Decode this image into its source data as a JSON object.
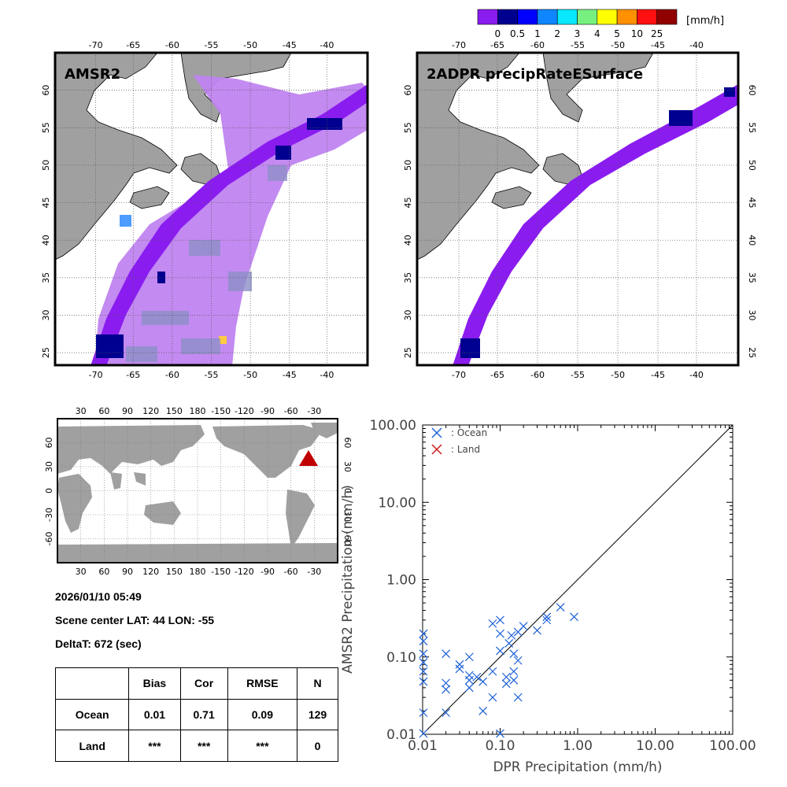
{
  "colorbar": {
    "unit": "[mm/h]",
    "labels": [
      "0",
      "0.5",
      "1",
      "2",
      "3",
      "4",
      "5",
      "10",
      "25"
    ],
    "colors": [
      "#8a1cf0",
      "#000090",
      "#0000ff",
      "#0f86ff",
      "#08e8ff",
      "#78f080",
      "#ffff00",
      "#ff9000",
      "#ff1010",
      "#900000"
    ]
  },
  "maps": [
    {
      "title": "AMSR2",
      "lon_ticks": [
        "-70",
        "-65",
        "-60",
        "-55",
        "-50",
        "-45",
        "-40"
      ],
      "lat_ticks": [
        "60",
        "55",
        "50",
        "45",
        "40",
        "35",
        "30",
        "25"
      ]
    },
    {
      "title": "2ADPR precipRateESurface",
      "lon_ticks": [
        "-70",
        "-65",
        "-60",
        "-55",
        "-50",
        "-45",
        "-40"
      ],
      "lat_ticks": [
        "60",
        "55",
        "50",
        "45",
        "40",
        "35",
        "30",
        "25"
      ]
    }
  ],
  "world_map": {
    "lon_ticks": [
      "30",
      "60",
      "90",
      "120",
      "150",
      "180",
      "-150",
      "-120",
      "-90",
      "-60",
      "-30"
    ],
    "lat_ticks": [
      "60",
      "30",
      "0",
      "-30",
      "-60"
    ],
    "marker_color": "#c00000"
  },
  "info": {
    "datetime": "2026/01/10 05:49",
    "scene_center": "Scene center LAT: 44   LON: -55",
    "delta_t": "DeltaT:  672 (sec)"
  },
  "stats_table": {
    "headers": [
      "",
      "Bias",
      "Cor",
      "RMSE",
      "N"
    ],
    "rows": [
      [
        "Ocean",
        "0.01",
        "0.71",
        "0.09",
        "129"
      ],
      [
        "Land",
        "***",
        "***",
        "***",
        "0"
      ]
    ]
  },
  "chart_data": {
    "type": "scatter",
    "scale": "log",
    "xlabel": "DPR Precipitation (mm/h)",
    "ylabel": "AMSR2 Precipitation (mm/h)",
    "xlim": [
      0.01,
      100
    ],
    "ylim": [
      0.01,
      100
    ],
    "x_tick_labels": [
      "0.01",
      "0.10",
      "1.00",
      "10.00",
      "100.00"
    ],
    "y_tick_labels": [
      "0.01",
      "0.10",
      "1.00",
      "10.00",
      "100.00"
    ],
    "legend": [
      {
        "label": ": Ocean",
        "color": "#1a5fd6"
      },
      {
        "label": ": Land",
        "color": "#cc1010"
      }
    ],
    "series": [
      {
        "name": "Ocean",
        "color": "#1a5fd6",
        "points": [
          [
            0.01,
            0.2
          ],
          [
            0.01,
            0.16
          ],
          [
            0.01,
            0.11
          ],
          [
            0.01,
            0.085
          ],
          [
            0.01,
            0.065
          ],
          [
            0.01,
            0.048
          ],
          [
            0.01,
            0.019
          ],
          [
            0.01,
            0.01
          ],
          [
            0.02,
            0.11
          ],
          [
            0.02,
            0.046
          ],
          [
            0.02,
            0.038
          ],
          [
            0.02,
            0.019
          ],
          [
            0.03,
            0.08
          ],
          [
            0.03,
            0.07
          ],
          [
            0.04,
            0.1
          ],
          [
            0.04,
            0.058
          ],
          [
            0.04,
            0.05
          ],
          [
            0.04,
            0.04
          ],
          [
            0.05,
            0.055
          ],
          [
            0.06,
            0.048
          ],
          [
            0.08,
            0.27
          ],
          [
            0.08,
            0.065
          ],
          [
            0.08,
            0.03
          ],
          [
            0.1,
            0.3
          ],
          [
            0.1,
            0.12
          ],
          [
            0.1,
            0.2
          ],
          [
            0.1,
            0.01
          ],
          [
            0.12,
            0.055
          ],
          [
            0.12,
            0.045
          ],
          [
            0.13,
            0.15
          ],
          [
            0.14,
            0.19
          ],
          [
            0.15,
            0.11
          ],
          [
            0.15,
            0.05
          ],
          [
            0.17,
            0.21
          ],
          [
            0.17,
            0.09
          ],
          [
            0.17,
            0.03
          ],
          [
            0.2,
            0.25
          ],
          [
            0.3,
            0.22
          ],
          [
            0.4,
            0.3
          ],
          [
            0.4,
            0.33
          ],
          [
            0.6,
            0.44
          ],
          [
            0.9,
            0.33
          ],
          [
            0.15,
            0.065
          ],
          [
            0.06,
            0.02
          ]
        ]
      },
      {
        "name": "Land",
        "color": "#cc1010",
        "points": []
      }
    ]
  }
}
